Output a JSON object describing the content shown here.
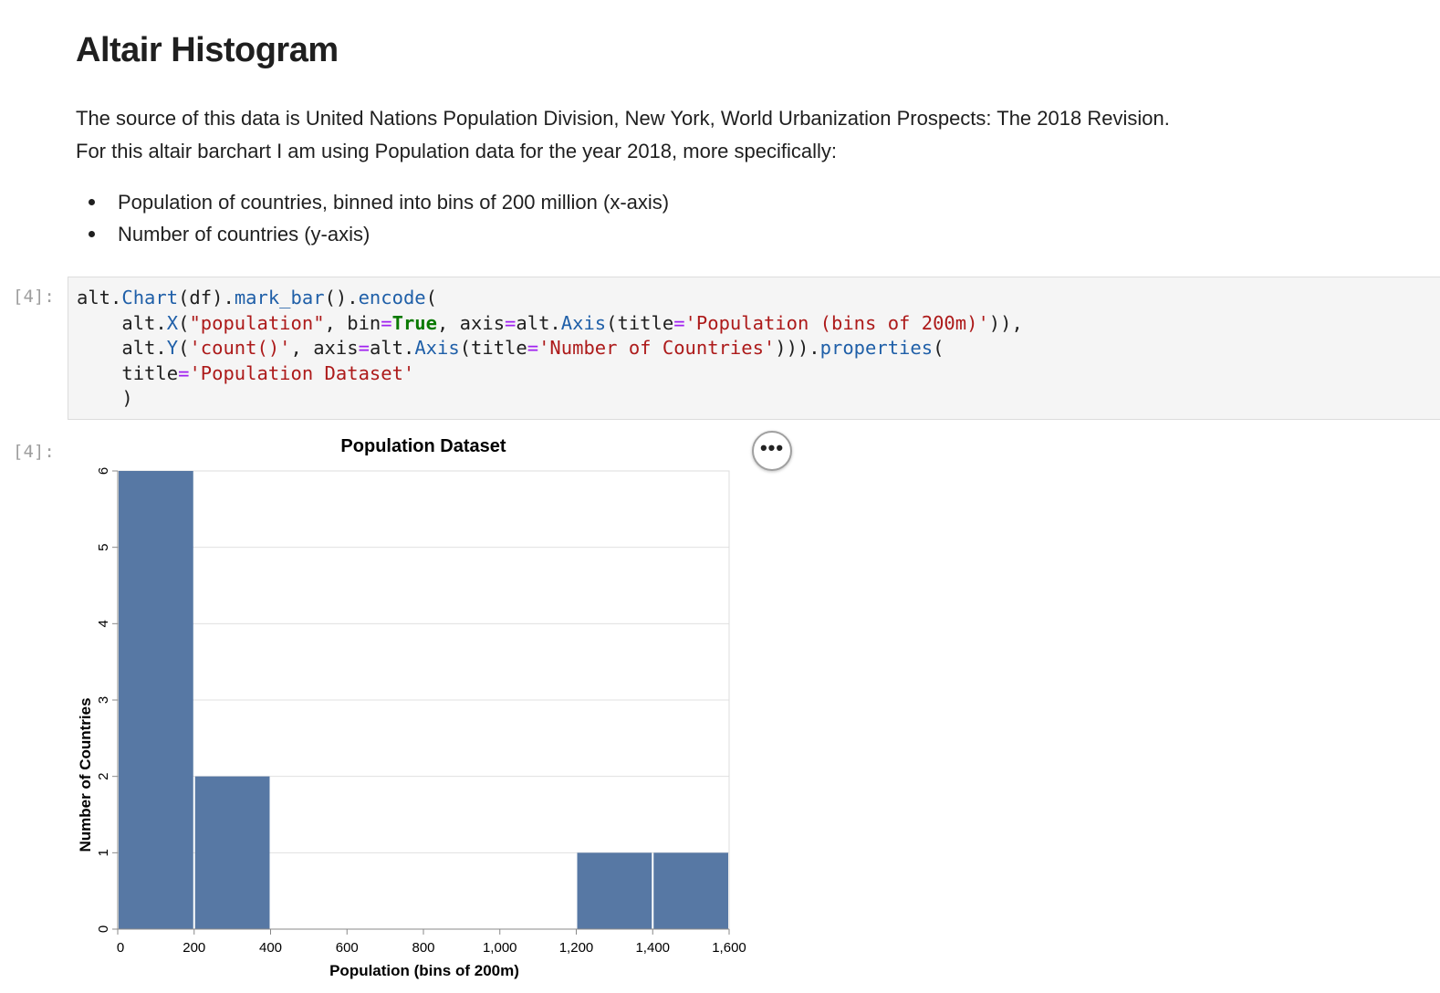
{
  "markdown": {
    "title": "Altair Histogram",
    "para_line1": "The source of this data is United Nations Population Division, New York, World Urbanization Prospects: The 2018 Revision.",
    "para_line2": "For this altair barchart I am using Population data for the year 2018, more specifically:",
    "bullets": [
      "Population of countries, binned into bins of 200 million (x-axis)",
      "Number of countries (y-axis)"
    ]
  },
  "cells": {
    "input_prompt": "[4]:",
    "output_prompt": "[4]:"
  },
  "code_lines": [
    "alt.Chart(df).mark_bar().encode(",
    "    alt.X(\"population\", bin=True, axis=alt.Axis(title='Population (bins of 200m)')),",
    "    alt.Y('count()', axis=alt.Axis(title='Number of Countries'))).properties(",
    "    title='Population Dataset'",
    "    )"
  ],
  "actions_menu_label": "•••",
  "colors": {
    "bar": "#5778a4",
    "grid": "#e0e0e0",
    "axis": "#888888"
  },
  "chart_data": {
    "type": "bar",
    "title": "Population Dataset",
    "xlabel": "Population (bins of 200m)",
    "ylabel": "Number of Countries",
    "xlim": [
      0,
      1600
    ],
    "ylim": [
      0,
      6
    ],
    "x_ticks": [
      "0",
      "200",
      "400",
      "600",
      "800",
      "1,000",
      "1,200",
      "1,400",
      "1,600"
    ],
    "y_ticks": [
      "0",
      "1",
      "2",
      "3",
      "4",
      "5",
      "6"
    ],
    "bins": [
      {
        "start": 0,
        "end": 200,
        "count": 6
      },
      {
        "start": 200,
        "end": 400,
        "count": 2
      },
      {
        "start": 1200,
        "end": 1400,
        "count": 1
      },
      {
        "start": 1400,
        "end": 1600,
        "count": 1
      }
    ],
    "grid": true,
    "legend": "none"
  }
}
